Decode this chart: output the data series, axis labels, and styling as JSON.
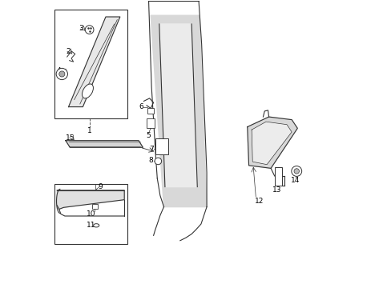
{
  "bg_color": "#ffffff",
  "line_color": "#333333",
  "label_color": "#000000",
  "figsize": [
    4.89,
    3.6
  ],
  "dpi": 100,
  "xlim": [
    0,
    10
  ],
  "ylim": [
    0,
    10
  ]
}
